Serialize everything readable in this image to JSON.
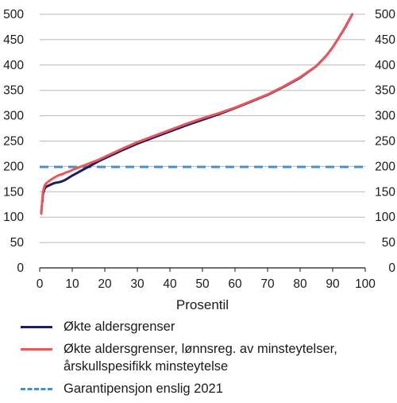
{
  "chart_data": {
    "type": "line",
    "xlabel": "Prosentil",
    "ylabel": "",
    "xlim": [
      0,
      100
    ],
    "ylim": [
      0,
      500
    ],
    "x_ticks": [
      "0",
      "10",
      "20",
      "30",
      "40",
      "50",
      "60",
      "70",
      "80",
      "90",
      "100"
    ],
    "y_ticks": [
      "0",
      "50",
      "100",
      "150",
      "200",
      "250",
      "300",
      "350",
      "400",
      "450",
      "500"
    ],
    "grid": "horizontal",
    "legend_position": "bottom",
    "series": [
      {
        "name": "Økte aldersgrenser",
        "color": "#1b1f5e",
        "style": "solid",
        "x": [
          0.5,
          1,
          1.5,
          2,
          3,
          4,
          5,
          6,
          7,
          8,
          9,
          10,
          12,
          14,
          16,
          18,
          20,
          25,
          30,
          35,
          40,
          45,
          50,
          55,
          60,
          65,
          70,
          75,
          80,
          85,
          88,
          90,
          92,
          94,
          96
        ],
        "y": [
          110,
          145,
          156,
          160,
          163,
          166,
          168,
          169,
          171,
          174,
          178,
          182,
          189,
          196,
          203,
          210,
          216,
          231,
          245,
          257,
          269,
          281,
          292,
          303,
          315,
          328,
          341,
          357,
          375,
          398,
          418,
          435,
          455,
          476,
          500
        ]
      },
      {
        "name": "Økte aldersgrenser, lønnsreg. av minsteytelser, årskullspesifikk minsteytelse",
        "color": "#e8595c",
        "style": "solid",
        "x": [
          0.5,
          1,
          1.5,
          2,
          3,
          4,
          5,
          6,
          7,
          8,
          9,
          10,
          12,
          14,
          16,
          18,
          20,
          25,
          30,
          35,
          40,
          45,
          50,
          55,
          60,
          65,
          70,
          75,
          80,
          85,
          88,
          90,
          92,
          94,
          96
        ],
        "y": [
          107,
          150,
          162,
          167,
          172,
          176,
          180,
          183,
          185,
          188,
          190,
          193,
          198,
          203,
          208,
          213,
          219,
          234,
          248,
          260,
          272,
          284,
          295,
          305,
          316,
          329,
          342,
          358,
          376,
          398,
          418,
          435,
          455,
          477,
          500
        ]
      },
      {
        "name": "Garantipensjon enslig 2021",
        "color": "#4a90c4",
        "style": "dashed",
        "x": [
          0,
          100
        ],
        "y": [
          199,
          199
        ]
      }
    ]
  }
}
